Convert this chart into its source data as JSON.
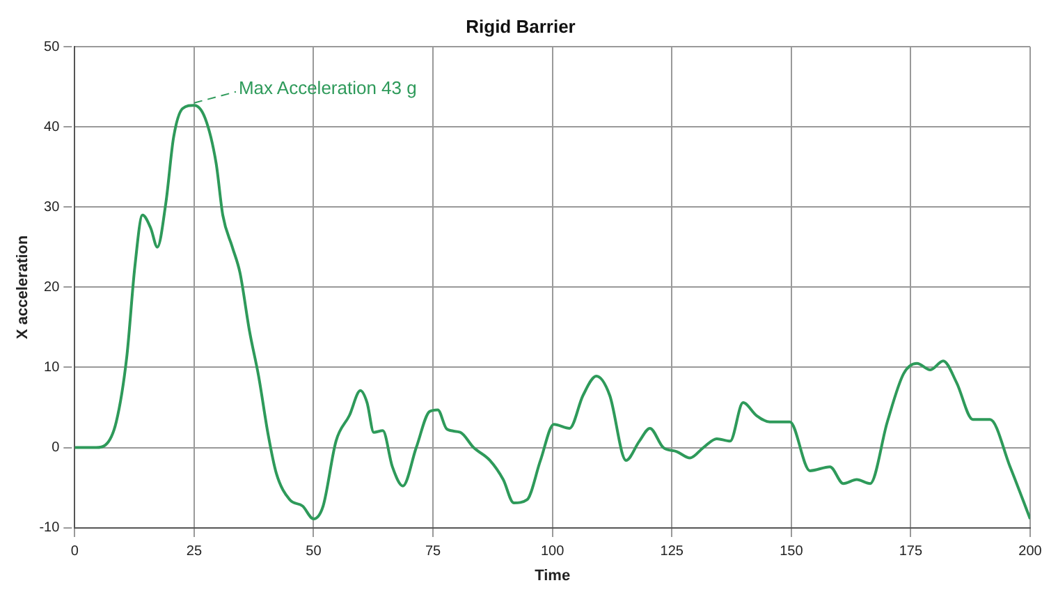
{
  "chart_data": {
    "type": "line",
    "title": "Rigid Barrier",
    "xlabel": "Time",
    "ylabel": "X acceleration",
    "xlim": [
      0,
      200
    ],
    "xticks": [
      0,
      25,
      50,
      75,
      100,
      125,
      150,
      175,
      200
    ],
    "ylim": [
      -10,
      50
    ],
    "yticks": [
      -10,
      0,
      10,
      20,
      30,
      40,
      50
    ],
    "grid": true,
    "line_style": "solid",
    "marker": "none",
    "annotations": [
      {
        "text": "Max Acceleration 43 g",
        "x": 25,
        "y": 43
      }
    ],
    "series": [
      {
        "color": "#2e9a5a",
        "x": [
          0,
          4.5,
          6.4,
          8.7,
          10.9,
          12.6,
          14.2,
          15.9,
          17.3,
          19.1,
          20.7,
          22.6,
          25,
          27.3,
          29.6,
          31,
          33,
          34.6,
          36.6,
          38.5,
          40.5,
          42.2,
          45,
          47.7,
          50,
          52,
          54.7,
          57.5,
          59.8,
          61.2,
          62.6,
          64.5,
          66.5,
          68.7,
          71.5,
          74.3,
          76,
          77.9,
          80.7,
          83.5,
          86.9,
          89.7,
          91.9,
          94.7,
          97.5,
          100.3,
          103.6,
          106.4,
          109.2,
          112,
          115.4,
          118.2,
          120.4,
          123.2,
          126,
          128.8,
          131.6,
          134.4,
          137.2,
          139.9,
          142.7,
          145.5,
          149.7,
          153.9,
          158.1,
          160.9,
          163.7,
          166.5,
          170.1,
          173.5,
          176.3,
          179.1,
          181.8,
          184.6,
          188,
          191.6,
          195.8,
          200
        ],
        "values": [
          0,
          0,
          0.3,
          3.2,
          11.3,
          22.6,
          29,
          27.4,
          25,
          30.6,
          38.7,
          42.3,
          42.7,
          41.1,
          35.5,
          29,
          25,
          21.8,
          14.5,
          8.9,
          1.6,
          -3.2,
          -6.5,
          -7.3,
          -8.9,
          -7.3,
          0.8,
          4,
          7.1,
          5.6,
          1.9,
          2.1,
          -2.4,
          -4.8,
          0,
          4.5,
          4.7,
          2.3,
          1.9,
          0,
          -1.6,
          -4,
          -6.9,
          -6.5,
          -1.6,
          2.9,
          2.4,
          6.5,
          8.9,
          6.5,
          -1.6,
          0.8,
          2.4,
          0,
          -0.5,
          -1.3,
          0,
          1.1,
          0.8,
          5.6,
          4,
          3.2,
          3.2,
          -2.9,
          -2.4,
          -4.5,
          -4,
          -4.5,
          3.2,
          9.2,
          10.5,
          9.7,
          10.8,
          8.1,
          3.5,
          3.5,
          -2.4,
          -8.9
        ]
      }
    ]
  }
}
